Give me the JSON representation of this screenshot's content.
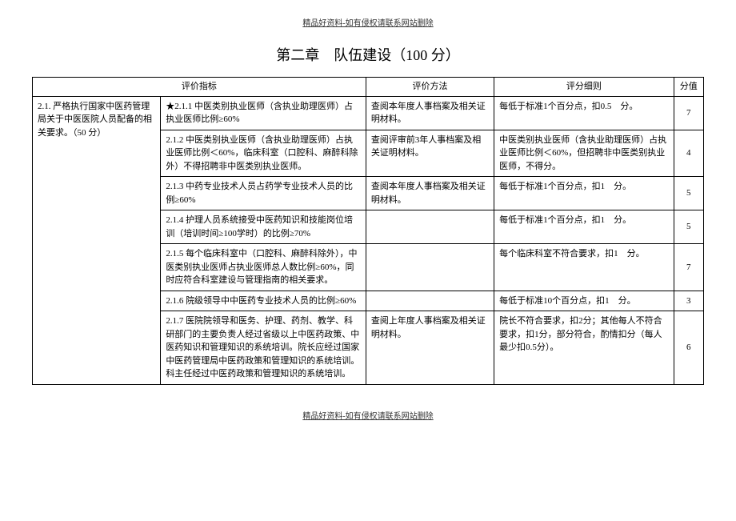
{
  "header_note": "精品好资料-如有侵权请联系网站删除",
  "footer_note": "精品好资料-如有侵权请联系网站删除",
  "title": "第二章　队伍建设（100 分）",
  "headers": {
    "indicator": "评价指标",
    "method": "评价方法",
    "rule": "评分细则",
    "score": "分值"
  },
  "section_label": "2.1. 严格执行国家中医药管理局关于中医医院人员配备的相关要求。（50 分）",
  "rows": [
    {
      "indicator": "★2.1.1 中医类别执业医师（含执业助理医师）占执业医师比例≥60%",
      "method": "查阅本年度人事档案及相关证明材料。",
      "rule": "每低于标准1个百分点，扣0.5　分。",
      "score": "7"
    },
    {
      "indicator": "2.1.2 中医类别执业医师（含执业助理医师）占执业医师比例＜60%，临床科室（口腔科、麻醉科除外）不得招聘非中医类别执业医师。",
      "method": "查阅评审前3年人事档案及相关证明材料。",
      "rule": "中医类别执业医师（含执业助理医师）占执业医师比例＜60%，但招聘非中医类别执业医师，不得分。",
      "score": "4"
    },
    {
      "indicator": "2.1.3 中药专业技术人员占药学专业技术人员的比例≥60%",
      "method": "查阅本年度人事档案及相关证明材料。",
      "rule": "每低于标准1个百分点，扣1　分。",
      "score": "5"
    },
    {
      "indicator": "2.1.4 护理人员系统接受中医药知识和技能岗位培训（培训时间≥100学时）的比例≥70%",
      "method": "",
      "rule": "每低于标准1个百分点，扣1　分。",
      "score": "5"
    },
    {
      "indicator": "2.1.5 每个临床科室中（口腔科、麻醉科除外），中医类别执业医师占执业医师总人数比例≥60%，同时应符合科室建设与管理指南的相关要求。",
      "method": "",
      "rule": "每个临床科室不符合要求，扣1　分。",
      "score": "7"
    },
    {
      "indicator": "2.1.6 院级领导中中医药专业技术人员的比例≥60%",
      "method": "",
      "rule": "每低于标准10个百分点，扣1　分。",
      "score": "3"
    },
    {
      "indicator": "2.1.7 医院院领导和医务、护理、药剂、教学、科研部门的主要负责人经过省级以上中医药政策、中医药知识和管理知识的系统培训。院长应经过国家中医药管理局中医药政策和管理知识的系统培训。科主任经过中医药政策和管理知识的系统培训。",
      "method": "查阅上年度人事档案及相关证明材料。",
      "rule": "院长不符合要求，扣2分；其他每人不符合要求，扣1分，部分符合，酌情扣分（每人最少扣0.5分）。",
      "score": "6"
    }
  ]
}
